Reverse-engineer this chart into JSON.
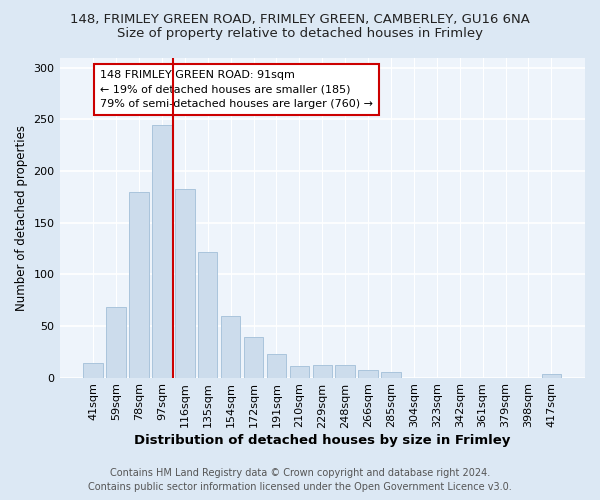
{
  "title1": "148, FRIMLEY GREEN ROAD, FRIMLEY GREEN, CAMBERLEY, GU16 6NA",
  "title2": "Size of property relative to detached houses in Frimley",
  "xlabel": "Distribution of detached houses by size in Frimley",
  "ylabel": "Number of detached properties",
  "bar_labels": [
    "41sqm",
    "59sqm",
    "78sqm",
    "97sqm",
    "116sqm",
    "135sqm",
    "154sqm",
    "172sqm",
    "191sqm",
    "210sqm",
    "229sqm",
    "248sqm",
    "266sqm",
    "285sqm",
    "304sqm",
    "323sqm",
    "342sqm",
    "361sqm",
    "379sqm",
    "398sqm",
    "417sqm"
  ],
  "bar_values": [
    14,
    68,
    180,
    245,
    183,
    122,
    60,
    39,
    23,
    11,
    12,
    12,
    7,
    5,
    0,
    0,
    0,
    0,
    0,
    0,
    3
  ],
  "bar_color": "#ccdcec",
  "bar_edge_color": "#aac4dc",
  "vline_x": 3.5,
  "vline_color": "#cc0000",
  "annotation_text": "148 FRIMLEY GREEN ROAD: 91sqm\n← 19% of detached houses are smaller (185)\n79% of semi-detached houses are larger (760) →",
  "annotation_box_color": "#ffffff",
  "annotation_box_edge": "#cc0000",
  "ylim": [
    0,
    310
  ],
  "yticks": [
    0,
    50,
    100,
    150,
    200,
    250,
    300
  ],
  "footer": "Contains HM Land Registry data © Crown copyright and database right 2024.\nContains public sector information licensed under the Open Government Licence v3.0.",
  "bg_color": "#dce8f4",
  "plot_bg_color": "#eef4fb",
  "title1_fontsize": 9.5,
  "title2_fontsize": 9.5,
  "xlabel_fontsize": 9.5,
  "ylabel_fontsize": 8.5,
  "tick_fontsize": 8,
  "footer_fontsize": 7,
  "annotation_fontsize": 8
}
